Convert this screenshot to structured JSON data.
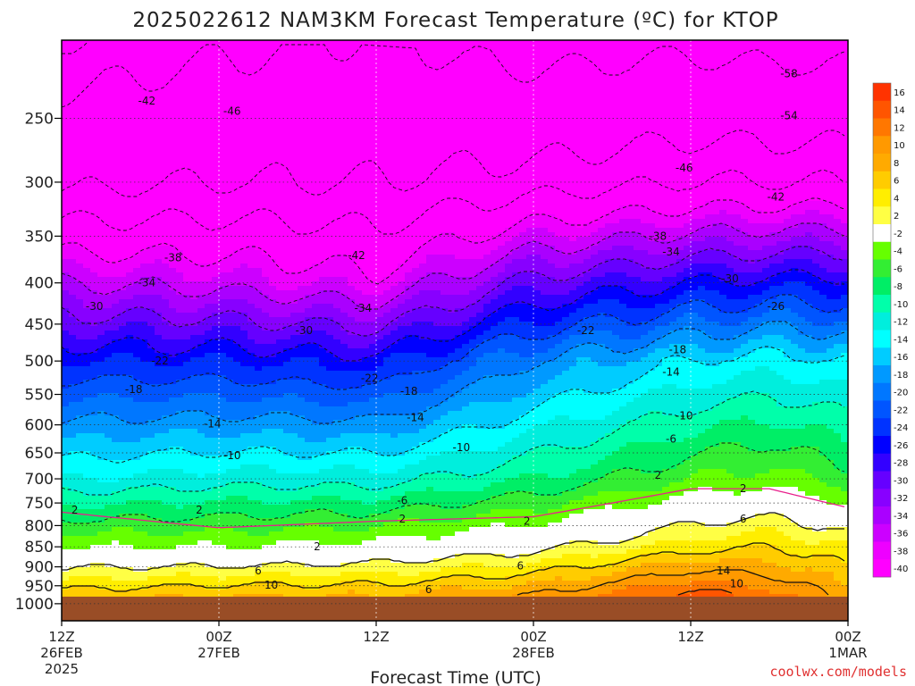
{
  "chart_data": {
    "type": "heatmap",
    "title": "2025022612 NAM3KM Forecast Temperature (ºC) for KTOP",
    "xlabel": "Forecast Time (UTC)",
    "ylabel": "",
    "credit": "coolwx.com/models",
    "x_ticks": [
      {
        "hour": 0,
        "line1": "12Z",
        "line2": "26FEB",
        "line3": "2025"
      },
      {
        "hour": 12,
        "line1": "00Z",
        "line2": "27FEB",
        "line3": ""
      },
      {
        "hour": 24,
        "line1": "12Z",
        "line2": "",
        "line3": ""
      },
      {
        "hour": 36,
        "line1": "00Z",
        "line2": "28FEB",
        "line3": ""
      },
      {
        "hour": 48,
        "line1": "12Z",
        "line2": "",
        "line3": ""
      },
      {
        "hour": 60,
        "line1": "00Z",
        "line2": "1MAR",
        "line3": ""
      }
    ],
    "xlim_hours": [
      0,
      60
    ],
    "y_axis": "pressure (hPa), log scale, decreasing upward",
    "ylim_hpa": [
      1050,
      200
    ],
    "y_ticks": [
      250,
      300,
      350,
      400,
      450,
      500,
      550,
      600,
      650,
      700,
      750,
      800,
      850,
      900,
      950,
      1000
    ],
    "surface_pressure_hpa": 980,
    "colorbar": {
      "labels": [
        "16",
        "14",
        "12",
        "10",
        "8",
        "6",
        "4",
        "2",
        "-2",
        "-4",
        "-6",
        "-8",
        "-10",
        "-12",
        "-14",
        "-16",
        "-18",
        "-20",
        "-22",
        "-24",
        "-26",
        "-28",
        "-30",
        "-32",
        "-34",
        "-36",
        "-38",
        "-40"
      ],
      "colors": [
        "#ff3300",
        "#ff5500",
        "#ff7700",
        "#ff9900",
        "#ffaa00",
        "#ffcc00",
        "#ffee00",
        "#ffff44",
        "#ffffff",
        "#66ff00",
        "#33ee33",
        "#00ee66",
        "#00ffaa",
        "#00eedd",
        "#00ffff",
        "#00ccff",
        "#0099ff",
        "#0077ff",
        "#0055ff",
        "#0033ff",
        "#0000ff",
        "#3300ff",
        "#6600ff",
        "#8800ff",
        "#aa00ff",
        "#cc00ff",
        "#ee00ff",
        "#ff00ff"
      ]
    },
    "profile_hours": [
      0,
      12,
      24,
      36,
      48,
      54,
      60
    ],
    "freezing_level_hpa": [
      770,
      805,
      790,
      780,
      720,
      720,
      760
    ],
    "temperature_anchor_levels_hpa": [
      975,
      850,
      700,
      500,
      400,
      300
    ],
    "temperature_anchors_c": [
      [
        7,
        -2,
        -12,
        -24,
        -34,
        -47
      ],
      [
        8,
        -2,
        -11,
        -24,
        -35,
        -46
      ],
      [
        8,
        -1,
        -11,
        -25,
        -37,
        -46
      ],
      [
        10,
        1,
        -8,
        -18,
        -29,
        -44
      ],
      [
        15,
        5,
        -4,
        -14,
        -26,
        -42
      ],
      [
        13,
        6,
        -3,
        -13,
        -25,
        -42
      ],
      [
        9,
        4,
        -5,
        -14,
        -25,
        -42
      ]
    ],
    "contour_labels": [
      {
        "text": "-58",
        "h": 55.5,
        "p": 220
      },
      {
        "text": "-54",
        "h": 55.5,
        "p": 248
      },
      {
        "text": "-46",
        "h": 47.5,
        "p": 288
      },
      {
        "text": "-42",
        "h": 6.5,
        "p": 238
      },
      {
        "text": "-46",
        "h": 13,
        "p": 245
      },
      {
        "text": "-42",
        "h": 54.5,
        "p": 313
      },
      {
        "text": "-42",
        "h": 22.5,
        "p": 370
      },
      {
        "text": "-38",
        "h": 8.5,
        "p": 372
      },
      {
        "text": "-38",
        "h": 45.5,
        "p": 350
      },
      {
        "text": "-34",
        "h": 46.5,
        "p": 366
      },
      {
        "text": "-34",
        "h": 6.5,
        "p": 400
      },
      {
        "text": "-34",
        "h": 23,
        "p": 430
      },
      {
        "text": "-30",
        "h": 2.5,
        "p": 428
      },
      {
        "text": "-30",
        "h": 18.5,
        "p": 458
      },
      {
        "text": "-30",
        "h": 51,
        "p": 395
      },
      {
        "text": "-26",
        "h": 54.5,
        "p": 428
      },
      {
        "text": "-22",
        "h": 7.5,
        "p": 500
      },
      {
        "text": "-22",
        "h": 23.5,
        "p": 525
      },
      {
        "text": "-22",
        "h": 40,
        "p": 458
      },
      {
        "text": "-18",
        "h": 5.5,
        "p": 542
      },
      {
        "text": "-18",
        "h": 26.5,
        "p": 545
      },
      {
        "text": "-18",
        "h": 47,
        "p": 484
      },
      {
        "text": "-14",
        "h": 11.5,
        "p": 598
      },
      {
        "text": "-14",
        "h": 27,
        "p": 588
      },
      {
        "text": "-14",
        "h": 46.5,
        "p": 516
      },
      {
        "text": "-10",
        "h": 13,
        "p": 655
      },
      {
        "text": "-10",
        "h": 30.5,
        "p": 640
      },
      {
        "text": "-10",
        "h": 47.5,
        "p": 585
      },
      {
        "text": "-6",
        "h": 26,
        "p": 745
      },
      {
        "text": "-6",
        "h": 46.5,
        "p": 625
      },
      {
        "text": "2",
        "h": 1,
        "p": 765
      },
      {
        "text": "2",
        "h": 10.5,
        "p": 765
      },
      {
        "text": "2",
        "h": 26,
        "p": 785
      },
      {
        "text": "2",
        "h": 19.5,
        "p": 850
      },
      {
        "text": "2",
        "h": 35.5,
        "p": 790
      },
      {
        "text": "2",
        "h": 45.5,
        "p": 693
      },
      {
        "text": "2",
        "h": 52,
        "p": 720
      },
      {
        "text": "6",
        "h": 15,
        "p": 910
      },
      {
        "text": "6",
        "h": 35,
        "p": 897
      },
      {
        "text": "6",
        "h": 52,
        "p": 785
      },
      {
        "text": "6",
        "h": 28,
        "p": 960
      },
      {
        "text": "10",
        "h": 16,
        "p": 948
      },
      {
        "text": "10",
        "h": 51.5,
        "p": 945
      },
      {
        "text": "14",
        "h": 50.5,
        "p": 910
      }
    ]
  }
}
